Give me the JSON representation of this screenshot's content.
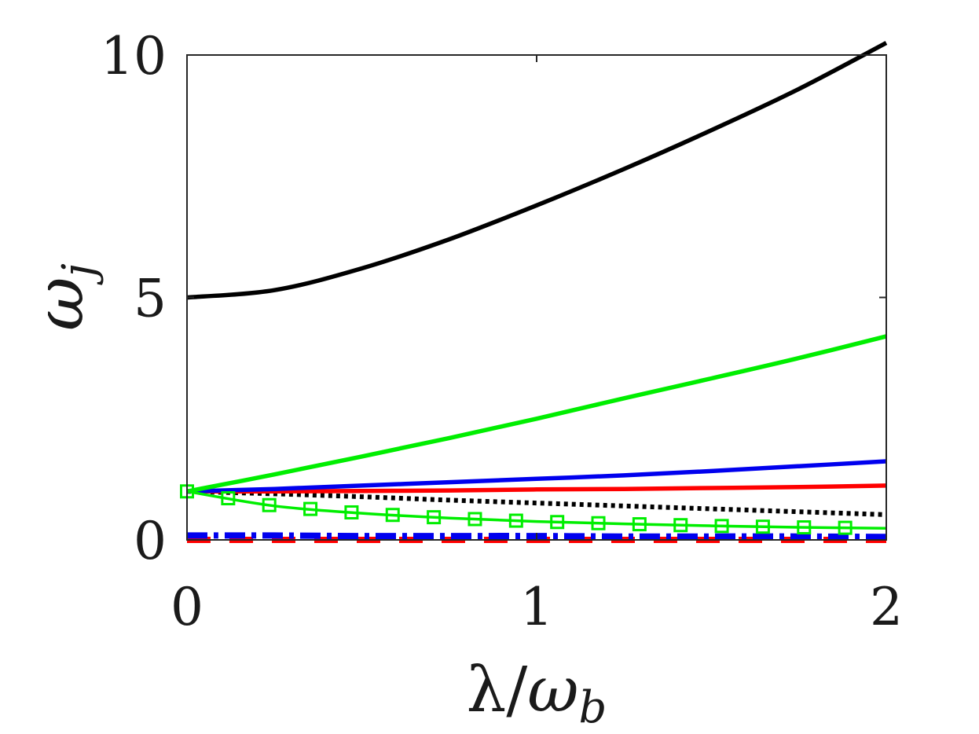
{
  "chart_data": {
    "type": "line",
    "title": "",
    "xlabel": "λ/ω_b",
    "ylabel": "ω_j",
    "xlim": [
      0,
      2
    ],
    "ylim": [
      0,
      10
    ],
    "xticks": [
      {
        "value": 0,
        "label": "0"
      },
      {
        "value": 1,
        "label": "1"
      },
      {
        "value": 2,
        "label": "2"
      }
    ],
    "yticks": [
      {
        "value": 0,
        "label": "0"
      },
      {
        "value": 5,
        "label": "5"
      },
      {
        "value": 10,
        "label": "10"
      }
    ],
    "grid": false,
    "legend": "none",
    "x": [
      0,
      0.25,
      0.5,
      0.75,
      1.0,
      1.25,
      1.5,
      1.75,
      2.0
    ],
    "series": [
      {
        "color": "#000000",
        "style": "solid",
        "values": [
          5.0,
          5.15,
          5.6,
          6.2,
          6.9,
          7.65,
          8.45,
          9.3,
          10.25
        ]
      },
      {
        "color": "#00ee00",
        "style": "solid",
        "values": [
          1.0,
          1.35,
          1.72,
          2.1,
          2.5,
          2.92,
          3.33,
          3.75,
          4.2
        ]
      },
      {
        "color": "#0000ee",
        "style": "solid",
        "values": [
          1.0,
          1.05,
          1.12,
          1.19,
          1.26,
          1.33,
          1.42,
          1.52,
          1.62
        ]
      },
      {
        "color": "#ff0000",
        "style": "solid",
        "values": [
          1.0,
          1.0,
          1.01,
          1.02,
          1.04,
          1.05,
          1.07,
          1.09,
          1.12
        ]
      },
      {
        "color": "#000000",
        "style": "dotted",
        "values": [
          1.0,
          0.95,
          0.89,
          0.82,
          0.76,
          0.7,
          0.64,
          0.58,
          0.52
        ]
      },
      {
        "color": "#00ee00",
        "style": "squares",
        "values": [
          1.0,
          0.7,
          0.55,
          0.45,
          0.38,
          0.33,
          0.29,
          0.26,
          0.24
        ]
      },
      {
        "color": "#0000ee",
        "style": "dashdot",
        "values": [
          0.09,
          0.09,
          0.08,
          0.08,
          0.08,
          0.07,
          0.07,
          0.07,
          0.06
        ]
      },
      {
        "color": "#ff0000",
        "style": "dashed",
        "values": [
          0.0,
          0.0,
          0.0,
          0.0,
          0.0,
          0.0,
          0.0,
          0.0,
          0.0
        ]
      }
    ]
  }
}
